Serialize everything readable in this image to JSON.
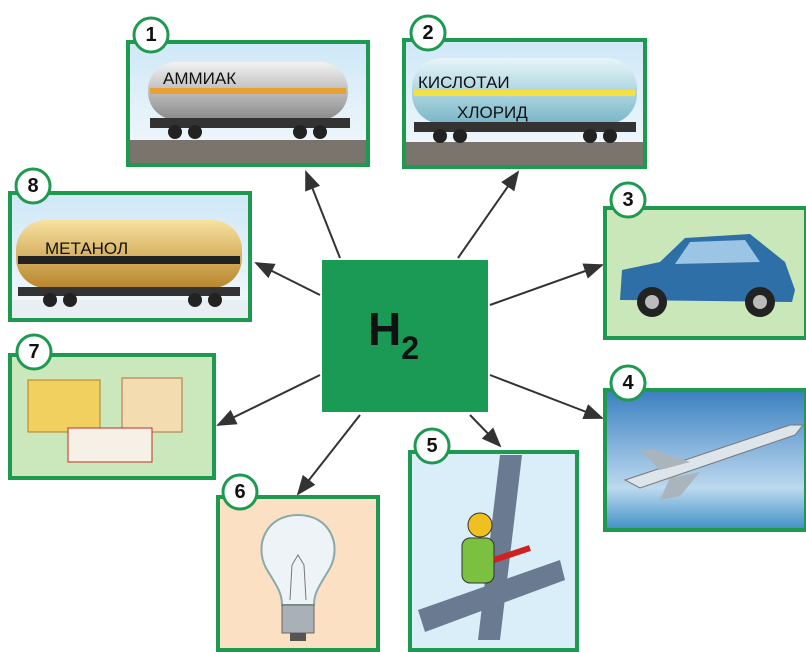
{
  "center": {
    "label": "H",
    "subscript": "2"
  },
  "nodes": [
    {
      "number": 1,
      "label": "АММИАК"
    },
    {
      "number": 2,
      "label_lines": [
        "КИСЛОТАИ",
        "ХЛОРИД"
      ]
    },
    {
      "number": 3
    },
    {
      "number": 4
    },
    {
      "number": 5
    },
    {
      "number": 6
    },
    {
      "number": 7
    },
    {
      "number": 8,
      "label": "МЕТАНОЛ"
    }
  ]
}
